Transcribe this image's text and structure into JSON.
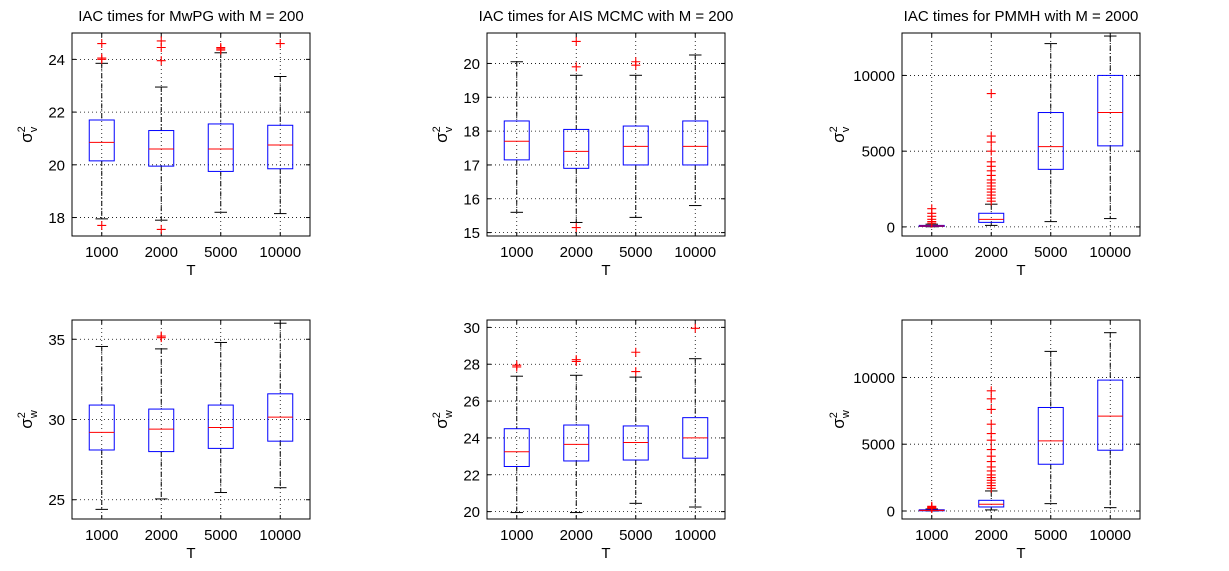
{
  "chart_data": [
    {
      "type": "box",
      "title": "IAC times for MwPG with M = 200",
      "xlabel": "T",
      "ylabel": "σ²v",
      "ylabel_base": "σ",
      "ylabel_sup": "2",
      "ylabel_sub": "v",
      "categories": [
        "1000",
        "2000",
        "5000",
        "10000"
      ],
      "ylim": [
        17.3,
        25.0
      ],
      "yticks": [
        18,
        20,
        22,
        24
      ],
      "ytick_labels": [
        "18",
        "20",
        "22",
        "24"
      ],
      "boxes": [
        {
          "category": "1000",
          "whisker_low": 17.95,
          "q1": 20.15,
          "median": 20.85,
          "q3": 21.7,
          "whisker_high": 23.85,
          "outliers": [
            17.7,
            24.0,
            24.05,
            24.6
          ]
        },
        {
          "category": "2000",
          "whisker_low": 17.9,
          "q1": 19.95,
          "median": 20.6,
          "q3": 21.3,
          "whisker_high": 22.95,
          "outliers": [
            17.55,
            23.95,
            24.45,
            24.7
          ]
        },
        {
          "category": "5000",
          "whisker_low": 18.2,
          "q1": 19.75,
          "median": 20.6,
          "q3": 21.55,
          "whisker_high": 24.25,
          "outliers": [
            24.35,
            24.4,
            24.45
          ]
        },
        {
          "category": "10000",
          "whisker_low": 18.15,
          "q1": 19.85,
          "median": 20.75,
          "q3": 21.5,
          "whisker_high": 23.35,
          "outliers": [
            24.6
          ]
        }
      ]
    },
    {
      "type": "box",
      "title": "IAC times for AIS MCMC with M = 200",
      "xlabel": "T",
      "ylabel": "σ²v",
      "ylabel_base": "σ",
      "ylabel_sup": "2",
      "ylabel_sub": "v",
      "categories": [
        "1000",
        "2000",
        "5000",
        "10000"
      ],
      "ylim": [
        14.9,
        20.9
      ],
      "yticks": [
        15,
        16,
        17,
        18,
        19,
        20
      ],
      "ytick_labels": [
        "15",
        "16",
        "17",
        "18",
        "19",
        "20"
      ],
      "boxes": [
        {
          "category": "1000",
          "whisker_low": 15.6,
          "q1": 17.15,
          "median": 17.7,
          "q3": 18.3,
          "whisker_high": 20.05,
          "outliers": []
        },
        {
          "category": "2000",
          "whisker_low": 15.3,
          "q1": 16.9,
          "median": 17.4,
          "q3": 18.05,
          "whisker_high": 19.65,
          "outliers": [
            15.15,
            19.9,
            20.65
          ]
        },
        {
          "category": "5000",
          "whisker_low": 15.45,
          "q1": 17.0,
          "median": 17.55,
          "q3": 18.15,
          "whisker_high": 19.65,
          "outliers": [
            19.95,
            20.05
          ]
        },
        {
          "category": "10000",
          "whisker_low": 15.8,
          "q1": 17.0,
          "median": 17.55,
          "q3": 18.3,
          "whisker_high": 20.25,
          "outliers": []
        }
      ]
    },
    {
      "type": "box",
      "title": "IAC times for PMMH with M = 2000",
      "xlabel": "T",
      "ylabel": "σ²v",
      "ylabel_base": "σ",
      "ylabel_sup": "2",
      "ylabel_sub": "v",
      "categories": [
        "1000",
        "2000",
        "5000",
        "10000"
      ],
      "ylim": [
        -600,
        12800
      ],
      "yticks": [
        0,
        5000,
        10000
      ],
      "ytick_labels": [
        "0",
        "5000",
        "10000"
      ],
      "boxes": [
        {
          "category": "1000",
          "whisker_low": 10,
          "q1": 30,
          "median": 60,
          "q3": 100,
          "whisker_high": 180,
          "outliers": [
            250,
            350,
            500,
            700,
            900,
            1200
          ]
        },
        {
          "category": "2000",
          "whisker_low": 100,
          "q1": 300,
          "median": 500,
          "q3": 900,
          "whisker_high": 1500,
          "outliers": [
            1700,
            1900,
            2100,
            2300,
            2500,
            2700,
            2900,
            3100,
            3400,
            3700,
            4000,
            4300,
            5000,
            5600,
            6000,
            8800
          ]
        },
        {
          "category": "5000",
          "whisker_low": 350,
          "q1": 3800,
          "median": 5300,
          "q3": 7550,
          "whisker_high": 12100,
          "outliers": []
        },
        {
          "category": "10000",
          "whisker_low": 550,
          "q1": 5350,
          "median": 7550,
          "q3": 10000,
          "whisker_high": 12600,
          "outliers": []
        }
      ]
    },
    {
      "type": "box",
      "title": "",
      "xlabel": "T",
      "ylabel": "σ²w",
      "ylabel_base": "σ",
      "ylabel_sup": "2",
      "ylabel_sub": "w",
      "categories": [
        "1000",
        "2000",
        "5000",
        "10000"
      ],
      "ylim": [
        23.8,
        36.2
      ],
      "yticks": [
        25,
        30,
        35
      ],
      "ytick_labels": [
        "25",
        "30",
        "35"
      ],
      "boxes": [
        {
          "category": "1000",
          "whisker_low": 24.4,
          "q1": 28.1,
          "median": 29.2,
          "q3": 30.9,
          "whisker_high": 34.55,
          "outliers": []
        },
        {
          "category": "2000",
          "whisker_low": 25.05,
          "q1": 28.0,
          "median": 29.4,
          "q3": 30.65,
          "whisker_high": 34.4,
          "outliers": [
            35.1,
            35.2
          ]
        },
        {
          "category": "5000",
          "whisker_low": 25.45,
          "q1": 28.2,
          "median": 29.5,
          "q3": 30.9,
          "whisker_high": 34.8,
          "outliers": []
        },
        {
          "category": "10000",
          "whisker_low": 25.75,
          "q1": 28.65,
          "median": 30.15,
          "q3": 31.6,
          "whisker_high": 36.0,
          "outliers": []
        }
      ]
    },
    {
      "type": "box",
      "title": "",
      "xlabel": "T",
      "ylabel": "σ²w",
      "ylabel_base": "σ",
      "ylabel_sup": "2",
      "ylabel_sub": "w",
      "categories": [
        "1000",
        "2000",
        "5000",
        "10000"
      ],
      "ylim": [
        19.6,
        30.4
      ],
      "yticks": [
        20,
        22,
        24,
        26,
        28,
        30
      ],
      "ytick_labels": [
        "20",
        "22",
        "24",
        "26",
        "28",
        "30"
      ],
      "boxes": [
        {
          "category": "1000",
          "whisker_low": 19.95,
          "q1": 22.45,
          "median": 23.25,
          "q3": 24.5,
          "whisker_high": 27.35,
          "outliers": [
            27.85,
            27.95
          ]
        },
        {
          "category": "2000",
          "whisker_low": 19.95,
          "q1": 22.75,
          "median": 23.65,
          "q3": 24.7,
          "whisker_high": 27.4,
          "outliers": [
            28.15,
            28.25
          ]
        },
        {
          "category": "5000",
          "whisker_low": 20.45,
          "q1": 22.8,
          "median": 23.75,
          "q3": 24.65,
          "whisker_high": 27.3,
          "outliers": [
            27.6,
            28.65
          ]
        },
        {
          "category": "10000",
          "whisker_low": 20.25,
          "q1": 22.9,
          "median": 24.0,
          "q3": 25.1,
          "whisker_high": 28.3,
          "outliers": [
            29.95
          ]
        }
      ]
    },
    {
      "type": "box",
      "title": "",
      "xlabel": "T",
      "ylabel": "σ²w",
      "ylabel_base": "σ",
      "ylabel_sup": "2",
      "ylabel_sub": "w",
      "categories": [
        "1000",
        "2000",
        "5000",
        "10000"
      ],
      "ylim": [
        -600,
        14300
      ],
      "yticks": [
        0,
        5000,
        10000
      ],
      "ytick_labels": [
        "0",
        "5000",
        "10000"
      ],
      "boxes": [
        {
          "category": "1000",
          "whisker_low": 5,
          "q1": 20,
          "median": 50,
          "q3": 90,
          "whisker_high": 150,
          "outliers": [
            200,
            250,
            300,
            350
          ]
        },
        {
          "category": "2000",
          "whisker_low": 80,
          "q1": 300,
          "median": 500,
          "q3": 800,
          "whisker_high": 1500,
          "outliers": [
            1700,
            1900,
            2100,
            2300,
            2500,
            2700,
            3000,
            3300,
            3700,
            4100,
            4600,
            5300,
            5800,
            6500,
            7600,
            8400,
            9000
          ]
        },
        {
          "category": "5000",
          "whisker_low": 550,
          "q1": 3500,
          "median": 5250,
          "q3": 7750,
          "whisker_high": 11950,
          "outliers": []
        },
        {
          "category": "10000",
          "whisker_low": 250,
          "q1": 4550,
          "median": 7100,
          "q3": 9800,
          "whisker_high": 13350,
          "outliers": []
        }
      ]
    }
  ],
  "colors": {
    "box": "#0000ff",
    "median": "#ff0000",
    "outlier": "#ff0000",
    "whisker": "#000000",
    "grid": "#000000"
  }
}
